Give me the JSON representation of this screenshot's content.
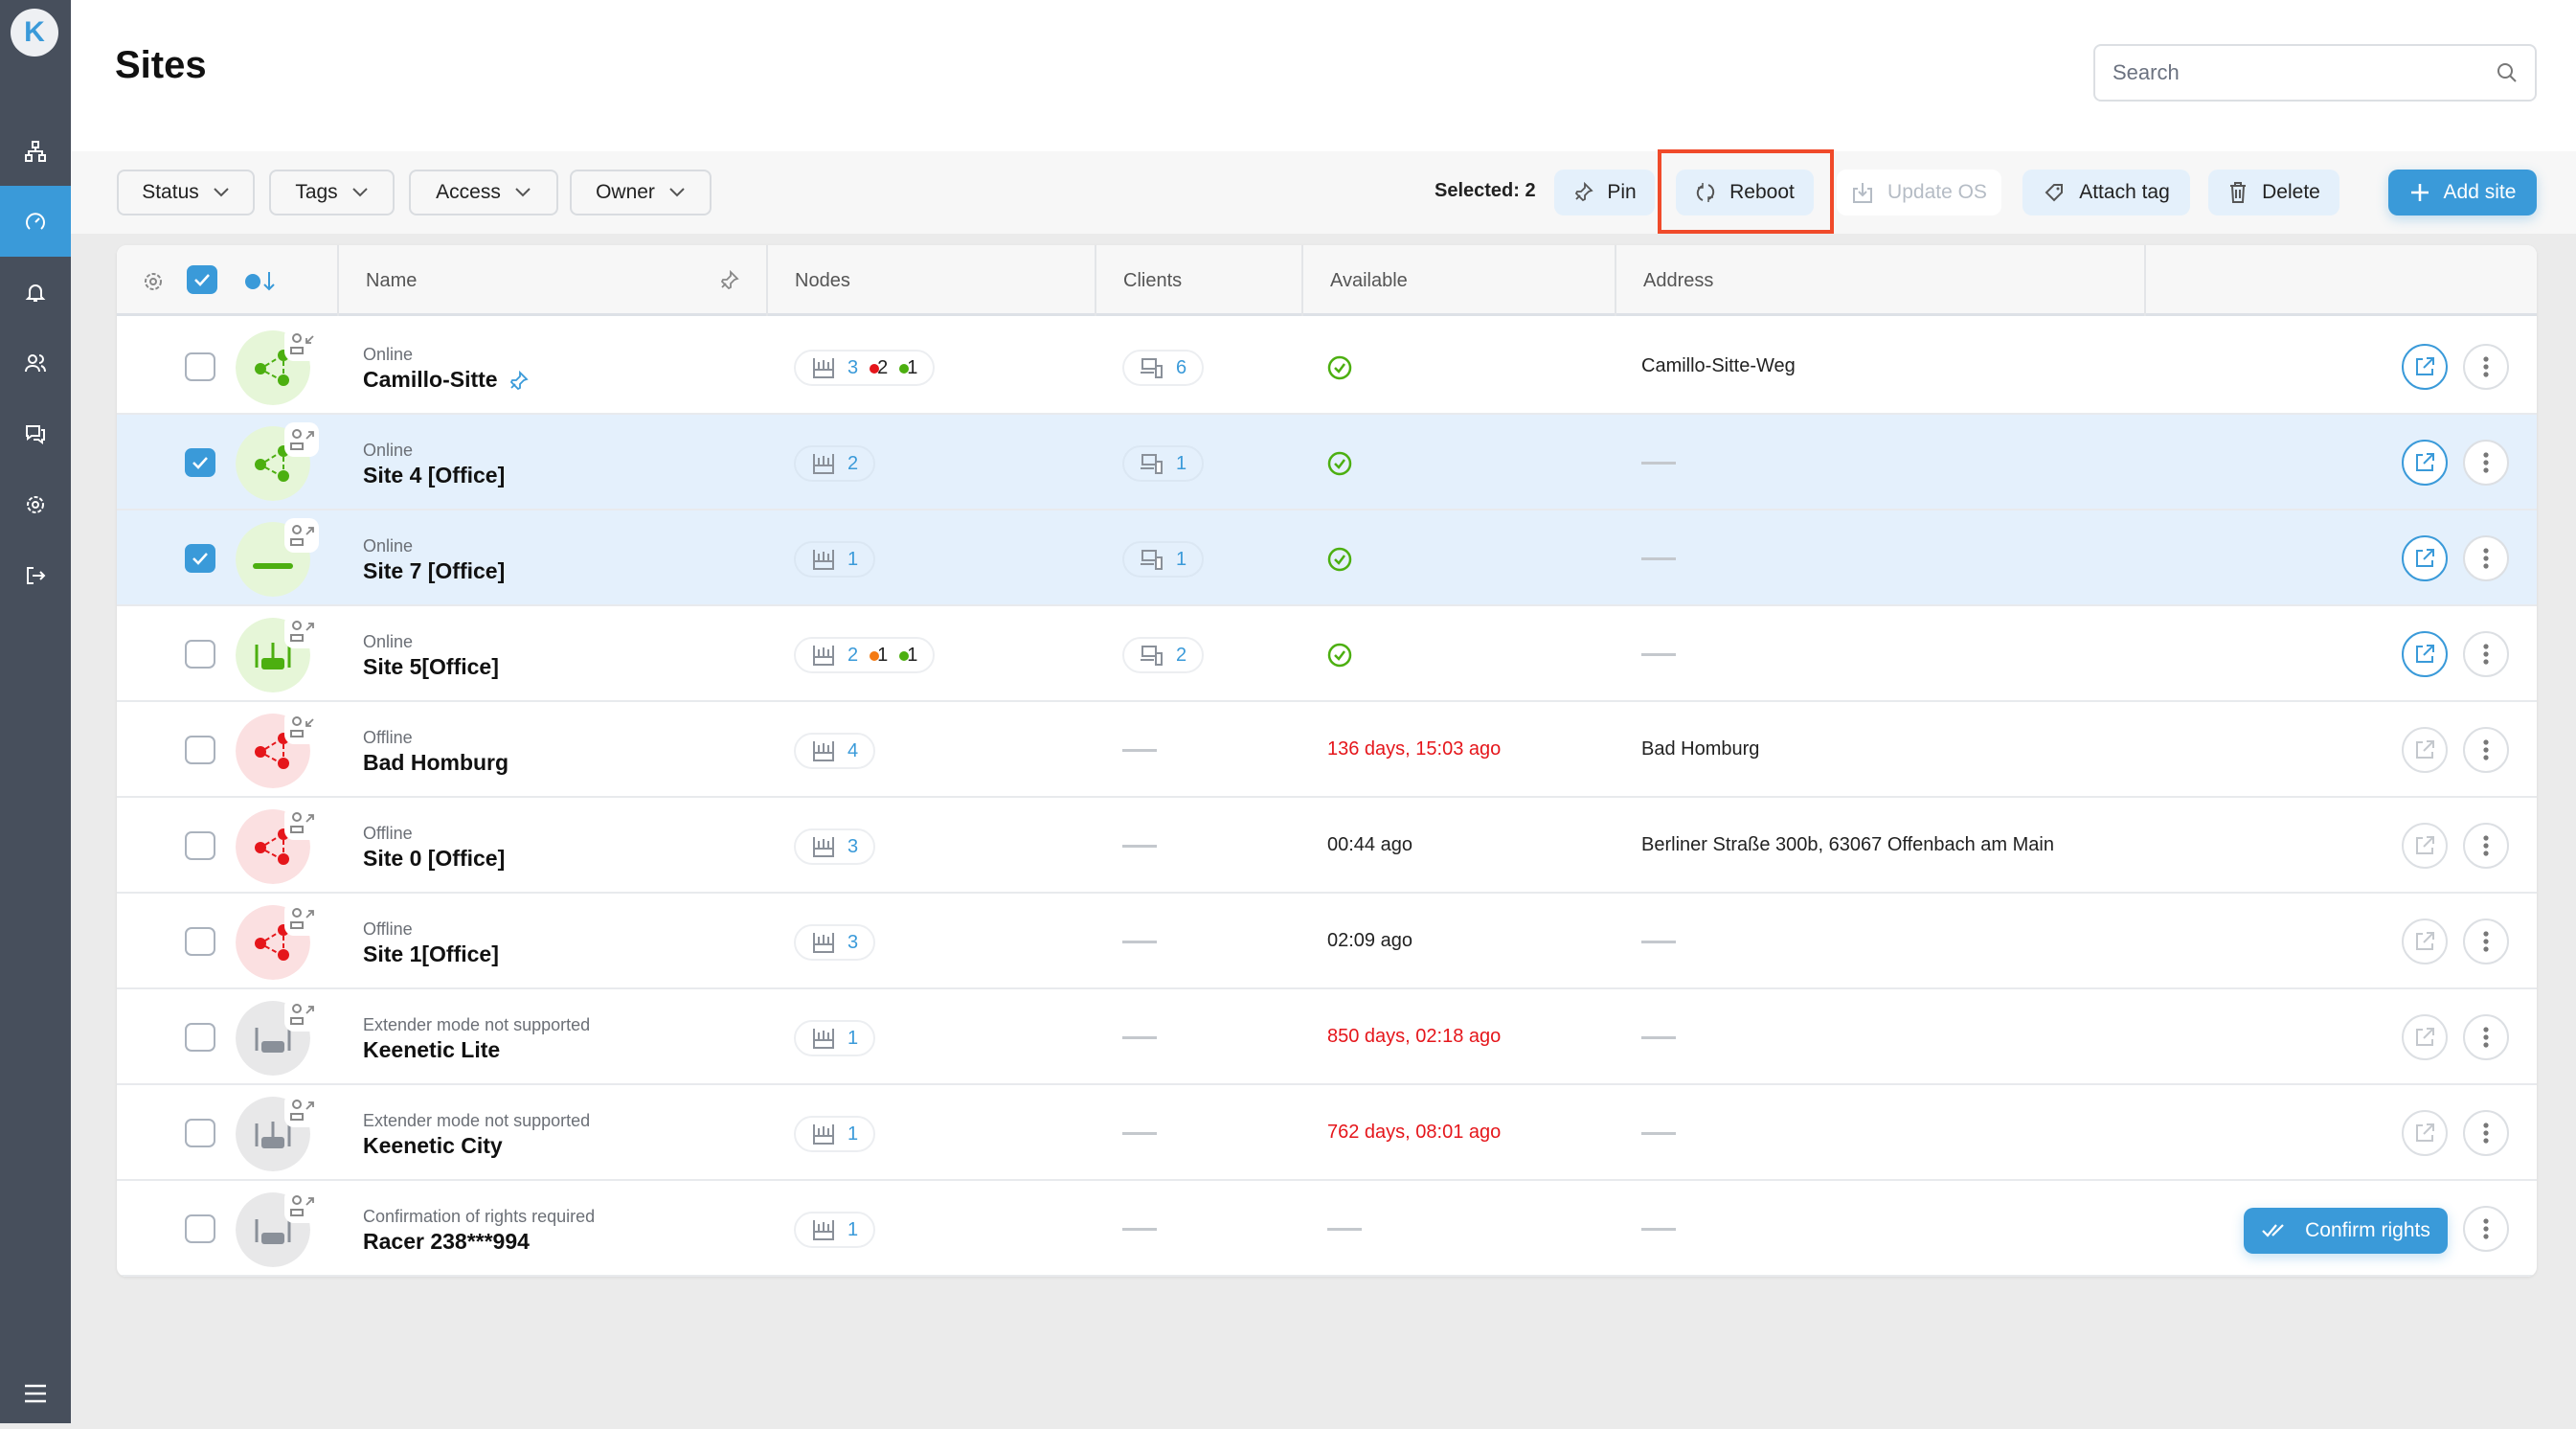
{
  "app": {
    "logo_letter": "K"
  },
  "sidebar": {
    "items": [
      {
        "icon": "network-topology-icon",
        "active": false
      },
      {
        "icon": "dashboard-gauge-icon",
        "active": true
      },
      {
        "icon": "bell-icon",
        "active": false
      },
      {
        "icon": "users-icon",
        "active": false
      },
      {
        "icon": "chat-icon",
        "active": false
      },
      {
        "icon": "gear-icon",
        "active": false
      },
      {
        "icon": "logout-icon",
        "active": false
      }
    ],
    "menu_icon": "hamburger-icon"
  },
  "header": {
    "title": "Sites",
    "search_placeholder": "Search"
  },
  "filters": [
    {
      "label": "Status"
    },
    {
      "label": "Tags"
    },
    {
      "label": "Access"
    },
    {
      "label": "Owner"
    }
  ],
  "actions": {
    "selected": "Selected: 2",
    "pin": "Pin",
    "reboot": "Reboot",
    "update_os": "Update OS",
    "attach_tag": "Attach tag",
    "delete": "Delete",
    "add_site": "Add site"
  },
  "colors": {
    "accent": "#3a9ad9",
    "online": "#4caf10",
    "offline": "#e5161b",
    "orange": "#f47a12",
    "highlight": "#f04a2a"
  },
  "table": {
    "columns": {
      "name": "Name",
      "nodes": "Nodes",
      "clients": "Clients",
      "available": "Available",
      "address": "Address"
    },
    "rows": [
      {
        "selected": false,
        "state": "online",
        "device": "mesh",
        "badge": "in",
        "status": "Online",
        "name": "Camillo-Sitte",
        "pinned": true,
        "nodes": {
          "total": "3",
          "dots": [
            {
              "color": "#e5161b",
              "count": "2"
            },
            {
              "color": "#4caf10",
              "count": "1"
            }
          ]
        },
        "clients": "6",
        "available": {
          "kind": "check"
        },
        "address": "Camillo-Sitte-Weg",
        "open_enabled": true
      },
      {
        "selected": true,
        "state": "online",
        "device": "mesh",
        "badge": "out",
        "status": "Online",
        "name": "Site 4 [Office]",
        "nodes": {
          "total": "2",
          "dots": []
        },
        "clients": "1",
        "available": {
          "kind": "check"
        },
        "address": null,
        "open_enabled": true
      },
      {
        "selected": true,
        "state": "online",
        "device": "bar",
        "badge": "out",
        "status": "Online",
        "name": "Site 7 [Office]",
        "nodes": {
          "total": "1",
          "dots": []
        },
        "clients": "1",
        "available": {
          "kind": "check"
        },
        "address": null,
        "open_enabled": true
      },
      {
        "selected": false,
        "state": "online",
        "device": "router",
        "badge": "out",
        "status": "Online",
        "name": "Site 5[Office]",
        "nodes": {
          "total": "2",
          "dots": [
            {
              "color": "#f47a12",
              "count": "1"
            },
            {
              "color": "#4caf10",
              "count": "1"
            }
          ]
        },
        "clients": "2",
        "available": {
          "kind": "check"
        },
        "address": null,
        "open_enabled": true
      },
      {
        "selected": false,
        "state": "offline",
        "device": "mesh",
        "badge": "in",
        "status": "Offline",
        "name": "Bad Homburg",
        "nodes": {
          "total": "4",
          "dots": []
        },
        "clients": null,
        "available": {
          "kind": "text",
          "text": "136 days, 15:03 ago",
          "color": "#e5161b"
        },
        "address": "Bad Homburg",
        "open_enabled": false
      },
      {
        "selected": false,
        "state": "offline",
        "device": "mesh",
        "badge": "out",
        "status": "Offline",
        "name": "Site 0 [Office]",
        "nodes": {
          "total": "3",
          "dots": []
        },
        "clients": null,
        "available": {
          "kind": "text",
          "text": "00:44 ago",
          "color": "#222222"
        },
        "address": "Berliner Straße 300b, 63067 Offenbach am Main",
        "open_enabled": false
      },
      {
        "selected": false,
        "state": "offline",
        "device": "mesh",
        "badge": "out",
        "status": "Offline",
        "name": "Site 1[Office]",
        "nodes": {
          "total": "3",
          "dots": []
        },
        "clients": null,
        "available": {
          "kind": "text",
          "text": "02:09 ago",
          "color": "#222222"
        },
        "address": null,
        "open_enabled": false
      },
      {
        "selected": false,
        "state": "unsupported",
        "device": "router",
        "badge": "out",
        "status": "Extender mode not supported",
        "name": "Keenetic Lite",
        "nodes": {
          "total": "1",
          "dots": []
        },
        "clients": null,
        "available": {
          "kind": "text",
          "text": "850 days, 02:18 ago",
          "color": "#e5161b"
        },
        "address": null,
        "open_enabled": false
      },
      {
        "selected": false,
        "state": "unsupported",
        "device": "router",
        "badge": "out",
        "status": "Extender mode not supported",
        "name": "Keenetic City",
        "nodes": {
          "total": "1",
          "dots": []
        },
        "clients": null,
        "available": {
          "kind": "text",
          "text": "762 days, 08:01 ago",
          "color": "#e5161b"
        },
        "address": null,
        "open_enabled": false
      },
      {
        "selected": false,
        "state": "unsupported",
        "device": "router",
        "badge": "out",
        "status": "Confirmation of rights required",
        "name": "Racer 238***994",
        "nodes": {
          "total": "1",
          "dots": []
        },
        "clients": null,
        "available": {
          "kind": "dash"
        },
        "address": null,
        "confirm_label": "Confirm rights"
      }
    ]
  }
}
